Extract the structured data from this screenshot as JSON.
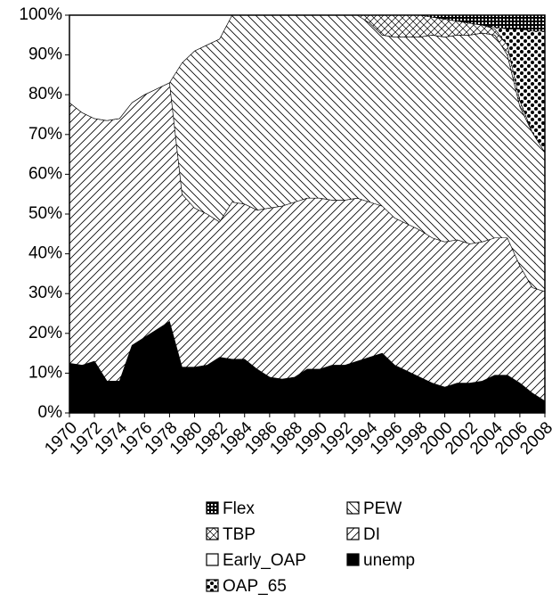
{
  "chart_data": {
    "type": "stacked_area",
    "x": [
      1970,
      1971,
      1972,
      1973,
      1974,
      1975,
      1976,
      1977,
      1978,
      1979,
      1980,
      1981,
      1982,
      1983,
      1984,
      1985,
      1986,
      1987,
      1988,
      1989,
      1990,
      1991,
      1992,
      1993,
      1994,
      1995,
      1996,
      1997,
      1998,
      1999,
      2000,
      2001,
      2002,
      2003,
      2004,
      2005,
      2006,
      2007,
      2008
    ],
    "xlim": [
      1970,
      2008
    ],
    "xticks": [
      1970,
      1972,
      1974,
      1976,
      1978,
      1980,
      1982,
      1984,
      1986,
      1988,
      1990,
      1992,
      1994,
      1996,
      1998,
      2000,
      2002,
      2004,
      2006,
      2008
    ],
    "ylim": [
      0,
      100
    ],
    "yticks": [
      {
        "value": 0,
        "label": "0%"
      },
      {
        "value": 10,
        "label": "10%"
      },
      {
        "value": 20,
        "label": "20%"
      },
      {
        "value": 30,
        "label": "30%"
      },
      {
        "value": 40,
        "label": "40%"
      },
      {
        "value": 50,
        "label": "50%"
      },
      {
        "value": 60,
        "label": "60%"
      },
      {
        "value": 70,
        "label": "70%"
      },
      {
        "value": 80,
        "label": "80%"
      },
      {
        "value": 90,
        "label": "90%"
      },
      {
        "value": 100,
        "label": "100%"
      }
    ],
    "series": [
      {
        "name": "unemp",
        "pattern": "solid",
        "values": [
          12.5,
          12,
          13,
          8,
          8,
          17,
          19,
          21,
          23,
          11.5,
          11.5,
          12,
          14,
          13.5,
          13.5,
          11,
          9,
          8.5,
          9,
          11,
          11,
          12,
          12,
          13,
          14,
          15,
          12,
          10.5,
          9,
          7.5,
          6.5,
          7.5,
          7.5,
          8,
          9.5,
          9.5,
          7.5,
          5,
          3
        ]
      },
      {
        "name": "DI",
        "pattern": "diag-up",
        "values": [
          65.5,
          63.5,
          61,
          65.5,
          66,
          61,
          61,
          60.5,
          60,
          43.5,
          40,
          38,
          34,
          39.5,
          39,
          40,
          42.5,
          43.5,
          44,
          43,
          43,
          41.5,
          41.5,
          41,
          39,
          37,
          37,
          37,
          37,
          36.5,
          36.5,
          36,
          35,
          35,
          34.5,
          34.5,
          29.5,
          26.5,
          27.5
        ]
      },
      {
        "name": "PEW",
        "pattern": "diag-down",
        "values": [
          0,
          0,
          0,
          0,
          0,
          0,
          0,
          0,
          0,
          33,
          39.5,
          42.5,
          46,
          47,
          47.5,
          49,
          48.5,
          48,
          47,
          46,
          46,
          46.5,
          46.5,
          46,
          45,
          43,
          45.5,
          47,
          48.5,
          51,
          51.5,
          51.5,
          52.5,
          52.5,
          51,
          46,
          40,
          39,
          35
        ]
      },
      {
        "name": "Early_OAP",
        "pattern": "white",
        "values": [
          22,
          24.5,
          26,
          26.5,
          26,
          22,
          20,
          18.5,
          17,
          12,
          9,
          7.5,
          6,
          0,
          0,
          0,
          0,
          0,
          0,
          0,
          0,
          0,
          0,
          0,
          0,
          0,
          0,
          0,
          0,
          0,
          0,
          0,
          0,
          0,
          0,
          0,
          0,
          0,
          0
        ]
      },
      {
        "name": "TBP",
        "pattern": "cross",
        "values": [
          0,
          0,
          0,
          0,
          0,
          0,
          0,
          0,
          0,
          0,
          0,
          0,
          0,
          0,
          0,
          0,
          0,
          0,
          0,
          0,
          0,
          0,
          0,
          0,
          2,
          5,
          5.5,
          5.5,
          5.5,
          4.5,
          4.5,
          3.5,
          3,
          2,
          1.5,
          2.5,
          1.5,
          0,
          0
        ]
      },
      {
        "name": "OAP_65",
        "pattern": "dots",
        "values": [
          0,
          0,
          0,
          0,
          0,
          0,
          0,
          0,
          0,
          0,
          0,
          0,
          0,
          0,
          0,
          0,
          0,
          0,
          0,
          0,
          0,
          0,
          0,
          0,
          0,
          0,
          0,
          0,
          0,
          0,
          0,
          0,
          0,
          0,
          0.5,
          4,
          18,
          25.5,
          30.5
        ]
      },
      {
        "name": "Flex",
        "pattern": "grid",
        "values": [
          0,
          0,
          0,
          0,
          0,
          0,
          0,
          0,
          0,
          0,
          0,
          0,
          0,
          0,
          0,
          0,
          0,
          0,
          0,
          0,
          0,
          0,
          0,
          0,
          0,
          0,
          0,
          0,
          0,
          0.5,
          1,
          1.5,
          2,
          2.5,
          3,
          3.5,
          3.5,
          4,
          4
        ]
      }
    ]
  }
}
